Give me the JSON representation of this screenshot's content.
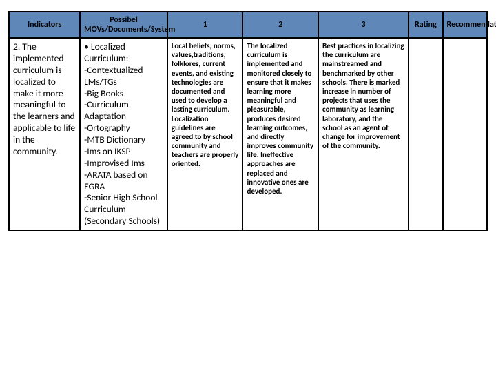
{
  "header": {
    "indicators": "Indicators",
    "movs": "Possibel MOVs/Documents/System",
    "c1": "1",
    "c2": "2",
    "c3": "3",
    "rating": "Rating",
    "recommendation": "Recommendation"
  },
  "row": {
    "indicator": "2. The implemented curriculum is localized to make it more meaningful to the learners and applicable to life in the community.",
    "movs": "• Localized Curriculum:\n-Contextualized LMs/TGs\n-Big Books\n-Curriculum Adaptation\n-Ortography\n-MTB Dictionary\n-Ims on IKSP\n-Improvised Ims\n-ARATA based on EGRA\n-Senior High School Curriculum (Secondary Schools)",
    "c1": "Local beliefs, norms, values,traditions, folklores, current events, and existing technologies are documented and used to develop a lasting curriculum. Localization guidelines are agreed to by school community and teachers are properly oriented.",
    "c2": "The localized curriculum is implemented and monitored closely to ensure that it makes learning more meaningful and pleasurable, produces desired learning outcomes, and directly improves community life. Ineffective approaches are replaced and innovative ones are developed.",
    "c3": "Best practices in localizing the curriculum are mainstreamed and benchmarked by other schools. There is marked increase in number of projects that uses the community as learning laboratory, and the school as an agent of change for improvement of the community.",
    "rating": "",
    "recommendation": ""
  },
  "style": {
    "header_bg": "#5f87b7",
    "border_color": "#000000",
    "body_font": "Calibri",
    "header_num_fontsize_pt": 16,
    "header_text_fontsize_pt": 9,
    "body_small_fontsize_pt": 8,
    "indicator_fontsize_pt": 10
  }
}
